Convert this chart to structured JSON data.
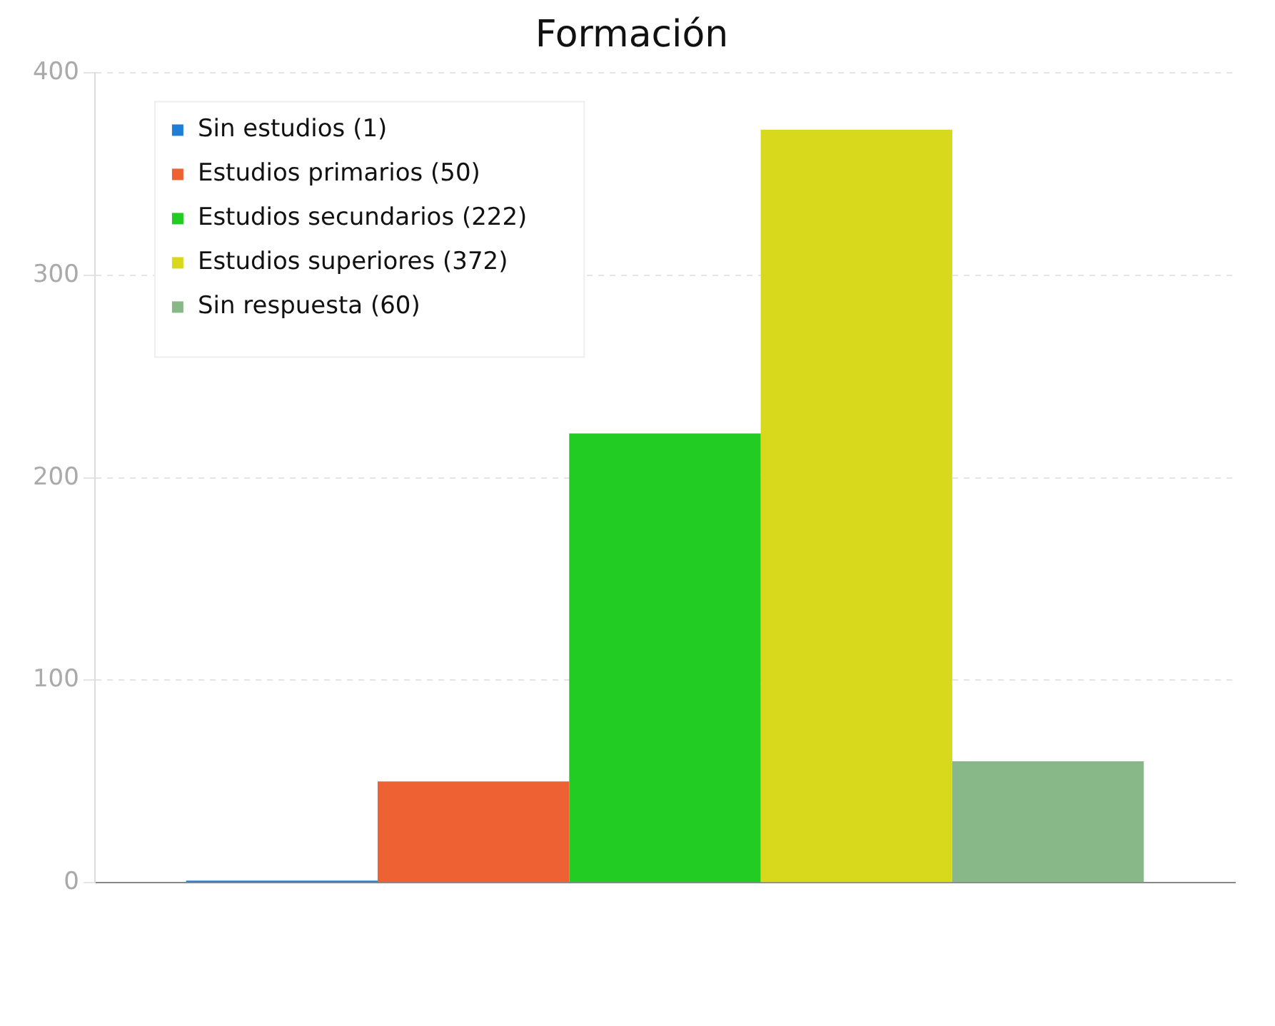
{
  "chart_data": {
    "type": "bar",
    "title": "Formación",
    "categories": [
      null
    ],
    "series": [
      {
        "name": "Sin estudios (1)",
        "color": "#1f7fd6",
        "values": [
          1
        ]
      },
      {
        "name": "Estudios primarios (50)",
        "color": "#ee6132",
        "values": [
          50
        ]
      },
      {
        "name": "Estudios secundarios (222)",
        "color": "#22cc22",
        "values": [
          222
        ]
      },
      {
        "name": "Estudios superiores (372)",
        "color": "#d8d81c",
        "values": [
          372
        ]
      },
      {
        "name": "Sin respuesta (60)",
        "color": "#88b888",
        "values": [
          60
        ]
      }
    ],
    "ylim": [
      0,
      400
    ],
    "yticks": [
      0,
      100,
      200,
      300,
      400
    ],
    "grid": "y",
    "legend": "top left"
  }
}
